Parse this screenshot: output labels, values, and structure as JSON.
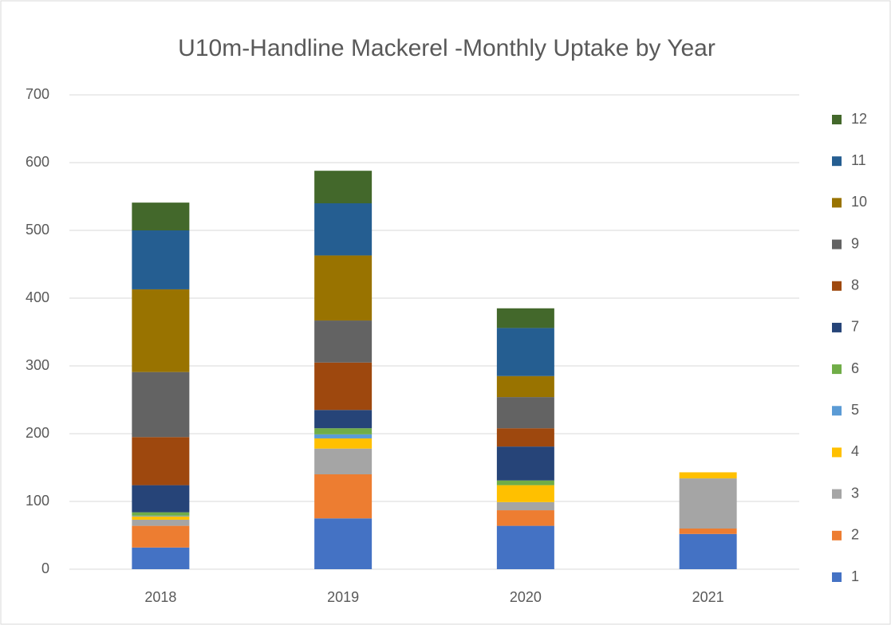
{
  "chart_data": {
    "type": "stacked_bar",
    "title": "U10m-Handline Mackerel -Monthly Uptake by Year",
    "categories": [
      "2018",
      "2019",
      "2020",
      "2021"
    ],
    "series": [
      {
        "name": "1",
        "color": "#4472c4",
        "values": [
          32,
          75,
          64,
          52
        ]
      },
      {
        "name": "2",
        "color": "#ed7d31",
        "values": [
          32,
          65,
          23,
          8
        ]
      },
      {
        "name": "3",
        "color": "#a5a5a5",
        "values": [
          9,
          38,
          12,
          74
        ]
      },
      {
        "name": "4",
        "color": "#ffc000",
        "values": [
          5,
          15,
          25,
          9
        ]
      },
      {
        "name": "5",
        "color": "#5b9bd5",
        "values": [
          1,
          6,
          0,
          0
        ]
      },
      {
        "name": "6",
        "color": "#70ad47",
        "values": [
          5,
          9,
          7,
          0
        ]
      },
      {
        "name": "7",
        "color": "#264478",
        "values": [
          40,
          27,
          50,
          0
        ]
      },
      {
        "name": "8",
        "color": "#9e480e",
        "values": [
          71,
          70,
          27,
          0
        ]
      },
      {
        "name": "9",
        "color": "#636363",
        "values": [
          96,
          62,
          46,
          0
        ]
      },
      {
        "name": "10",
        "color": "#997300",
        "values": [
          122,
          96,
          31,
          0
        ]
      },
      {
        "name": "11",
        "color": "#255e91",
        "values": [
          87,
          77,
          71,
          0
        ]
      },
      {
        "name": "12",
        "color": "#43682b",
        "values": [
          41,
          48,
          29,
          0
        ]
      }
    ],
    "ylim": [
      0,
      700
    ],
    "yticks": [
      0,
      100,
      200,
      300,
      400,
      500,
      600,
      700
    ],
    "grid": true,
    "legend": "right"
  }
}
